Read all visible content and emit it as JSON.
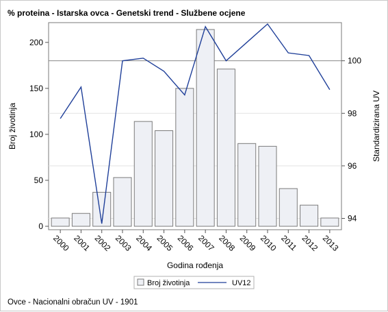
{
  "chart_data": {
    "type": "bar",
    "title": "% proteina - Istarska ovca - Genetski trend - Službene ocjene",
    "footnote": "Ovce - Nacionalni obračun UV - 1901",
    "xlabel": "Godina rođenja",
    "ylabel": "Broj životinja",
    "y2label": "Standardizirana UV",
    "categories": [
      "2000",
      "2001",
      "2002",
      "2003",
      "2004",
      "2005",
      "2006",
      "2007",
      "2008",
      "2009",
      "2010",
      "2011",
      "2012",
      "2013"
    ],
    "ylim": [
      0,
      220
    ],
    "yticks": [
      0,
      50,
      100,
      150,
      200
    ],
    "y2lim": [
      93.7,
      101.4
    ],
    "y2ticks": [
      94,
      96,
      98,
      100
    ],
    "reference_line_y2": 100,
    "series": [
      {
        "name": "Broj životinja",
        "kind": "bar",
        "color": "#eef0f5",
        "values": [
          9,
          14,
          37,
          53,
          114,
          104,
          150,
          214,
          171,
          90,
          87,
          41,
          23,
          9
        ]
      },
      {
        "name": "UV12",
        "kind": "line",
        "axis": "right",
        "color": "#1f3f99",
        "values": [
          97.8,
          99.0,
          93.8,
          100.0,
          100.1,
          99.6,
          98.7,
          101.3,
          100.0,
          100.7,
          101.4,
          100.3,
          100.2,
          98.9
        ]
      }
    ],
    "legend_position": "bottom"
  }
}
